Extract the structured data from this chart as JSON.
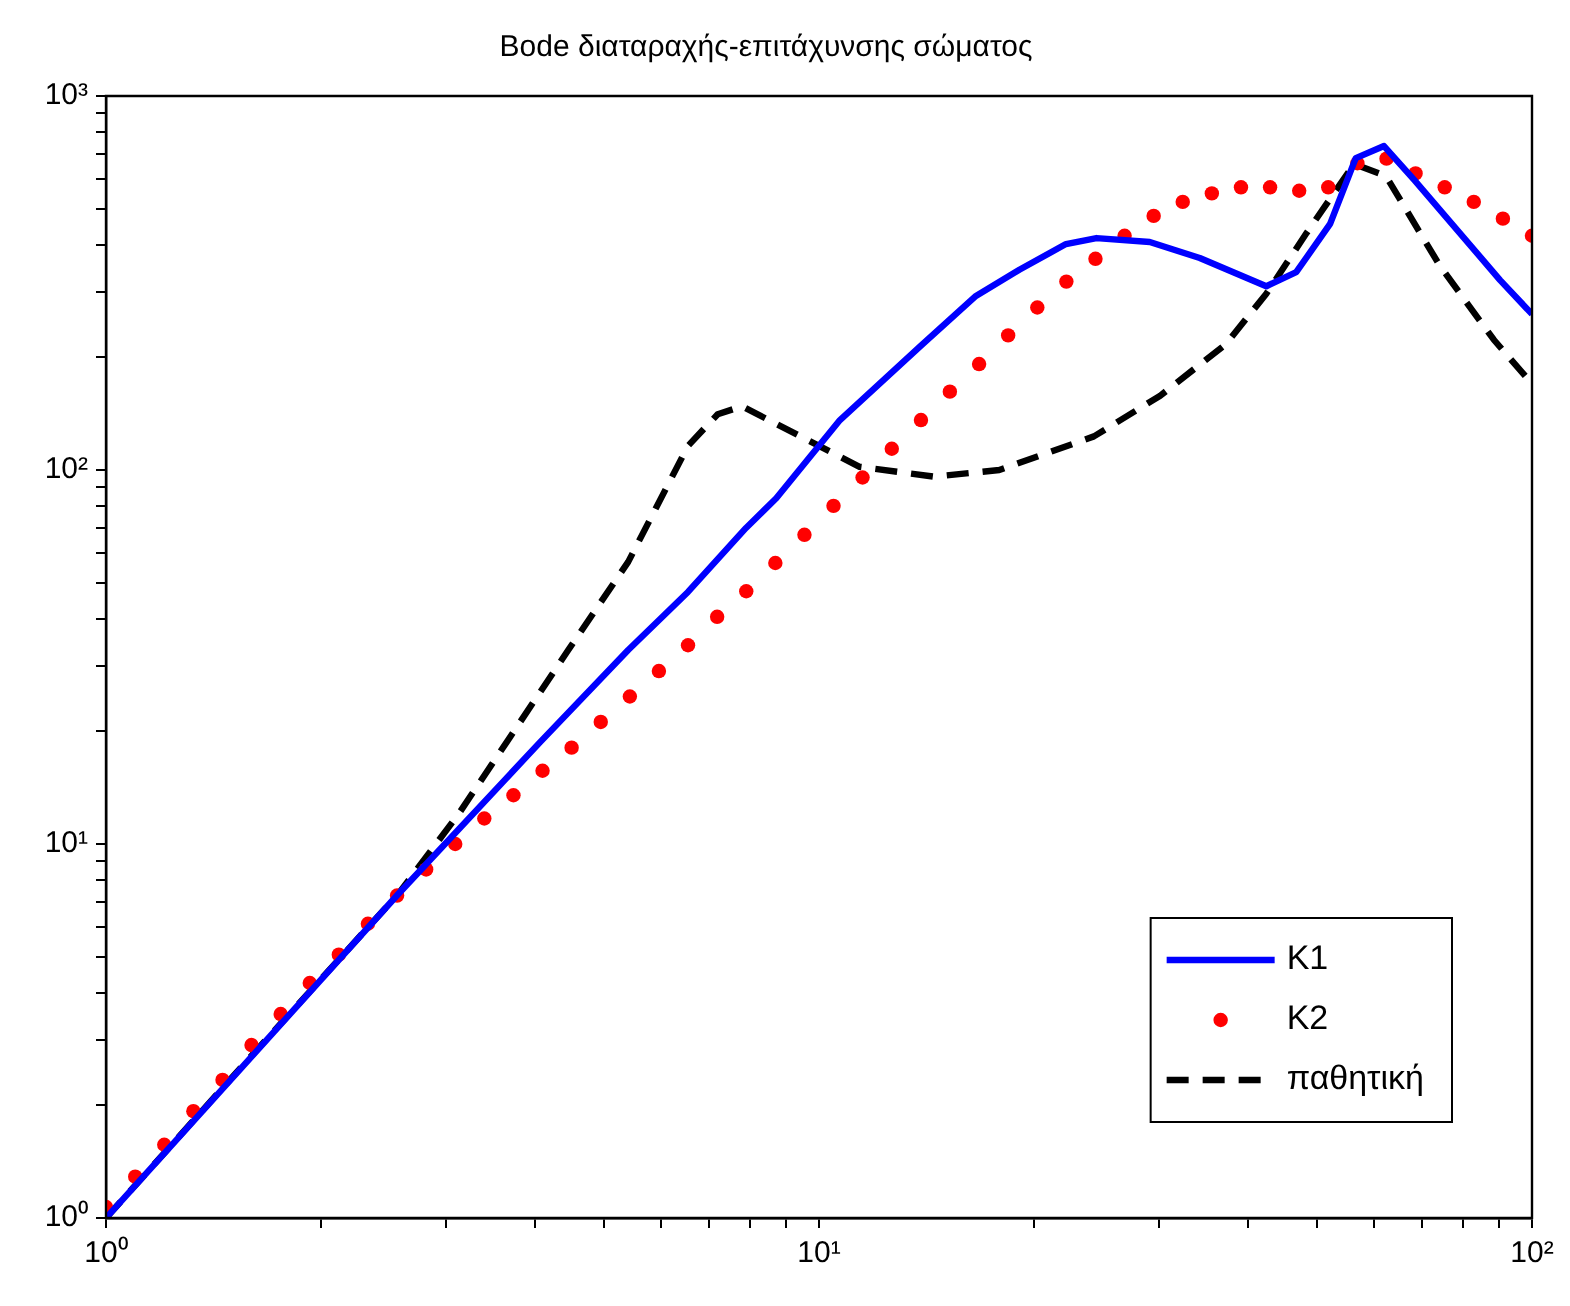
{
  "chart_data": {
    "type": "line",
    "title": "Bode διαταραχής-επιτάχυνσης σώματος",
    "log": "xy",
    "xlim": [
      1,
      100
    ],
    "ylim": [
      1,
      1000
    ],
    "xticks": [
      {
        "value": 1,
        "label": "10⁰"
      },
      {
        "value": 2,
        "label": null
      },
      {
        "value": 3,
        "label": null
      },
      {
        "value": 4,
        "label": null
      },
      {
        "value": 5,
        "label": null
      },
      {
        "value": 6,
        "label": null
      },
      {
        "value": 7,
        "label": null
      },
      {
        "value": 8,
        "label": null
      },
      {
        "value": 9,
        "label": null
      },
      {
        "value": 10,
        "label": "10¹"
      },
      {
        "value": 20,
        "label": null
      },
      {
        "value": 30,
        "label": null
      },
      {
        "value": 40,
        "label": null
      },
      {
        "value": 50,
        "label": null
      },
      {
        "value": 60,
        "label": null
      },
      {
        "value": 70,
        "label": null
      },
      {
        "value": 80,
        "label": null
      },
      {
        "value": 90,
        "label": null
      },
      {
        "value": 100,
        "label": "10²"
      }
    ],
    "yticks": [
      {
        "value": 1,
        "label": "10⁰"
      },
      {
        "value": 2,
        "label": null
      },
      {
        "value": 3,
        "label": null
      },
      {
        "value": 4,
        "label": null
      },
      {
        "value": 5,
        "label": null
      },
      {
        "value": 6,
        "label": null
      },
      {
        "value": 7,
        "label": null
      },
      {
        "value": 8,
        "label": null
      },
      {
        "value": 9,
        "label": null
      },
      {
        "value": 10,
        "label": "10¹"
      },
      {
        "value": 20,
        "label": null
      },
      {
        "value": 30,
        "label": null
      },
      {
        "value": 40,
        "label": null
      },
      {
        "value": 50,
        "label": null
      },
      {
        "value": 60,
        "label": null
      },
      {
        "value": 70,
        "label": null
      },
      {
        "value": 80,
        "label": null
      },
      {
        "value": 90,
        "label": null
      },
      {
        "value": 100,
        "label": "10²"
      },
      {
        "value": 200,
        "label": null
      },
      {
        "value": 300,
        "label": null
      },
      {
        "value": 400,
        "label": null
      },
      {
        "value": 500,
        "label": null
      },
      {
        "value": 600,
        "label": null
      },
      {
        "value": 700,
        "label": null
      },
      {
        "value": 800,
        "label": null
      },
      {
        "value": 900,
        "label": null
      },
      {
        "value": 1000,
        "label": "10³"
      }
    ],
    "legend": "bottom right",
    "series": [
      {
        "name": "K1",
        "color": "#0000ff",
        "type": "line",
        "line_style": "solid",
        "marker": "none",
        "x": [
          1,
          2.57,
          4.06,
          5.4,
          6.55,
          7.9,
          8.71,
          10.7,
          13.9,
          16.6,
          19.1,
          22.2,
          24.5,
          29.1,
          34.2,
          42.4,
          46.7,
          52.1,
          56.6,
          62,
          68.4,
          90.2,
          100
        ],
        "values": [
          1,
          7.35,
          18.7,
          33,
          47.2,
          70,
          84,
          136,
          215,
          292,
          343,
          402,
          417,
          407,
          369,
          310,
          338,
          455,
          682,
          735,
          596,
          322,
          261
        ]
      },
      {
        "name": "K2",
        "color": "#ff0000",
        "type": "scatter",
        "marker": "circle",
        "x": [
          1,
          1.099,
          1.207,
          1.326,
          1.457,
          1.6,
          1.758,
          1.931,
          2.121,
          2.33,
          2.56,
          2.812,
          3.089,
          3.393,
          3.728,
          4.095,
          4.498,
          4.942,
          5.429,
          5.963,
          6.551,
          7.197,
          7.906,
          8.685,
          9.541,
          10.48,
          11.51,
          12.65,
          13.9,
          15.26,
          16.77,
          18.42,
          20.24,
          22.23,
          24.42,
          26.83,
          29.47,
          32.37,
          35.56,
          39.07,
          42.92,
          47.15,
          51.79,
          56.9,
          62.51,
          68.66,
          75.43,
          82.86,
          91.03,
          100
        ],
        "values": [
          1.07,
          1.29,
          1.57,
          1.93,
          2.34,
          2.9,
          3.51,
          4.25,
          5.06,
          6.12,
          7.28,
          8.55,
          10,
          11.7,
          13.5,
          15.7,
          18.1,
          21.2,
          24.8,
          29,
          34,
          40.5,
          47.4,
          56.4,
          67.1,
          80.2,
          95.5,
          114,
          136,
          162,
          192,
          229,
          272,
          319,
          367,
          423,
          478,
          521,
          549,
          570,
          570,
          558,
          570,
          661,
          680,
          621,
          570,
          521,
          470,
          423
        ]
      },
      {
        "name": "παθητική",
        "color": "#000000",
        "type": "line",
        "line_style": "dashed",
        "marker": "none",
        "x": [
          1,
          1.59,
          2.57,
          3.12,
          4.45,
          5.4,
          6.55,
          7.21,
          7.8,
          10,
          11.4,
          14.5,
          17.9,
          24.3,
          30.1,
          37.2,
          42.4,
          48.2,
          56.3,
          62.4,
          74.3,
          88.4,
          100
        ],
        "values": [
          1,
          2.68,
          7.35,
          12,
          33,
          56.8,
          116,
          141,
          148,
          116,
          102,
          96,
          100,
          123,
          158,
          217,
          296,
          428,
          658,
          611,
          351,
          223,
          170
        ]
      }
    ]
  }
}
